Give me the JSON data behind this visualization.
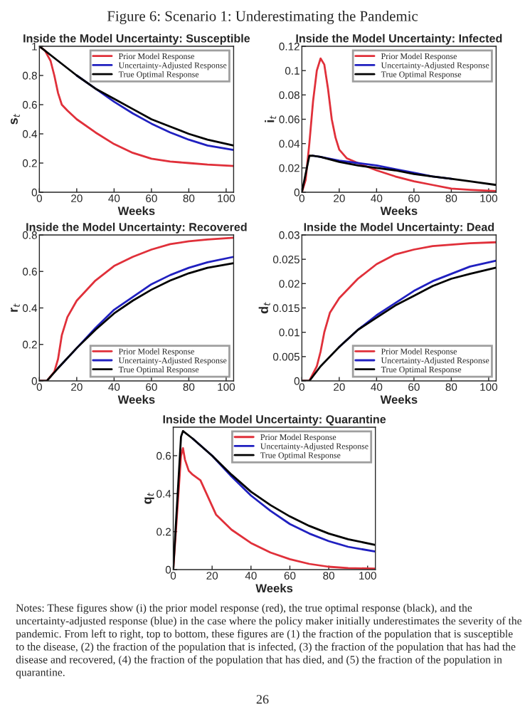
{
  "chart_data": [
    {
      "type": "line",
      "title": "Inside the Model Uncertainty: Susceptible",
      "xlabel": "Weeks",
      "ylabel": "s$_{t}$",
      "xlim": [
        0,
        104
      ],
      "xticks": [
        0,
        20,
        40,
        60,
        80,
        100
      ],
      "ylim": [
        0,
        1
      ],
      "yticks": [
        0,
        0.2,
        0.4,
        0.6,
        0.8,
        1
      ],
      "legend": "top right",
      "grid": false,
      "annotations": [
        "Figure 6: Scenario 1: Underestimating the Pandemic"
      ],
      "series": [
        {
          "name": "Prior Model Response",
          "color": "#e0303a",
          "x": [
            0,
            3,
            6,
            8,
            10,
            12,
            15,
            20,
            30,
            40,
            50,
            60,
            70,
            80,
            90,
            104
          ],
          "values": [
            1,
            0.97,
            0.9,
            0.8,
            0.68,
            0.6,
            0.56,
            0.5,
            0.41,
            0.33,
            0.27,
            0.23,
            0.21,
            0.2,
            0.19,
            0.18
          ]
        },
        {
          "name": "Uncertainty-Adjusted Response",
          "color": "#2020c0",
          "x": [
            20,
            30,
            40,
            50,
            60,
            70,
            80,
            90,
            104
          ],
          "values": [
            0.8,
            0.71,
            0.62,
            0.54,
            0.47,
            0.41,
            0.36,
            0.32,
            0.29
          ]
        },
        {
          "name": "True Optimal Response",
          "color": "#000000",
          "x": [
            0,
            10,
            20,
            30,
            40,
            50,
            60,
            70,
            80,
            90,
            104
          ],
          "values": [
            1,
            0.9,
            0.8,
            0.71,
            0.64,
            0.57,
            0.5,
            0.45,
            0.4,
            0.36,
            0.32
          ]
        }
      ]
    },
    {
      "type": "line",
      "title": "Inside the Model Uncertainty: Infected",
      "xlabel": "Weeks",
      "ylabel": "i$_{t}$",
      "xlim": [
        0,
        104
      ],
      "xticks": [
        0,
        20,
        40,
        60,
        80,
        100
      ],
      "ylim": [
        0,
        0.12
      ],
      "yticks": [
        0,
        0.02,
        0.04,
        0.06,
        0.08,
        0.1,
        0.12
      ],
      "legend": "top right",
      "grid": false,
      "series": [
        {
          "name": "Prior Model Response",
          "color": "#e0303a",
          "x": [
            0,
            2,
            4,
            6,
            8,
            10,
            12,
            14,
            16,
            18,
            20,
            24,
            30,
            40,
            50,
            60,
            70,
            80,
            90,
            104
          ],
          "values": [
            0,
            0.01,
            0.04,
            0.075,
            0.1,
            0.11,
            0.105,
            0.085,
            0.06,
            0.045,
            0.035,
            0.028,
            0.024,
            0.018,
            0.013,
            0.009,
            0.006,
            0.003,
            0.002,
            0.001
          ]
        },
        {
          "name": "Uncertainty-Adjusted Response",
          "color": "#2020c0",
          "x": [
            6,
            10,
            20,
            30,
            40,
            50,
            60,
            70,
            80
          ],
          "values": [
            0.03,
            0.029,
            0.026,
            0.024,
            0.022,
            0.019,
            0.016,
            0.013,
            0.011
          ]
        },
        {
          "name": "True Optimal Response",
          "color": "#000000",
          "x": [
            0,
            2,
            4,
            6,
            10,
            20,
            30,
            40,
            50,
            60,
            70,
            80,
            90,
            104
          ],
          "values": [
            0,
            0.015,
            0.03,
            0.03,
            0.029,
            0.025,
            0.022,
            0.02,
            0.018,
            0.015,
            0.013,
            0.011,
            0.009,
            0.006
          ]
        }
      ]
    },
    {
      "type": "line",
      "title": "Inside the Model Uncertainty: Recovered",
      "xlabel": "Weeks",
      "ylabel": "r$_{t}$",
      "xlim": [
        0,
        104
      ],
      "xticks": [
        0,
        20,
        40,
        60,
        80,
        100
      ],
      "ylim": [
        0,
        0.8
      ],
      "yticks": [
        0,
        0.2,
        0.4,
        0.6,
        0.8
      ],
      "legend": "bottom right",
      "grid": false,
      "series": [
        {
          "name": "Prior Model Response",
          "color": "#e0303a",
          "x": [
            0,
            4,
            8,
            10,
            12,
            15,
            20,
            30,
            40,
            50,
            60,
            70,
            80,
            90,
            104
          ],
          "values": [
            0,
            0,
            0.05,
            0.12,
            0.25,
            0.35,
            0.44,
            0.55,
            0.63,
            0.68,
            0.72,
            0.75,
            0.765,
            0.775,
            0.785
          ]
        },
        {
          "name": "Uncertainty-Adjusted Response",
          "color": "#2020c0",
          "x": [
            10,
            20,
            30,
            40,
            50,
            60,
            70,
            80,
            90,
            104
          ],
          "values": [
            0.07,
            0.18,
            0.29,
            0.39,
            0.46,
            0.53,
            0.58,
            0.62,
            0.65,
            0.68
          ]
        },
        {
          "name": "True Optimal Response",
          "color": "#000000",
          "x": [
            0,
            4,
            10,
            20,
            30,
            40,
            50,
            60,
            70,
            80,
            90,
            104
          ],
          "values": [
            0,
            0,
            0.07,
            0.18,
            0.28,
            0.37,
            0.44,
            0.5,
            0.55,
            0.59,
            0.62,
            0.645
          ]
        }
      ]
    },
    {
      "type": "line",
      "title": "Inside the Model Uncertainty: Dead",
      "xlabel": "Weeks",
      "ylabel": "d$_{t}$",
      "xlim": [
        0,
        104
      ],
      "xticks": [
        0,
        20,
        40,
        60,
        80,
        100
      ],
      "ylim": [
        0,
        0.03
      ],
      "yticks": [
        0,
        0.005,
        0.01,
        0.015,
        0.02,
        0.025,
        0.03
      ],
      "legend": "bottom right",
      "grid": false,
      "series": [
        {
          "name": "Prior Model Response",
          "color": "#e0303a",
          "x": [
            0,
            4,
            8,
            10,
            12,
            15,
            20,
            30,
            40,
            50,
            60,
            70,
            80,
            90,
            104
          ],
          "values": [
            0,
            0,
            0.003,
            0.006,
            0.01,
            0.014,
            0.017,
            0.021,
            0.024,
            0.026,
            0.027,
            0.0277,
            0.028,
            0.0283,
            0.0285
          ]
        },
        {
          "name": "Uncertainty-Adjusted Response",
          "color": "#2020c0",
          "x": [
            20,
            30,
            40,
            50,
            60,
            70,
            80,
            90,
            104
          ],
          "values": [
            0.007,
            0.0105,
            0.0135,
            0.016,
            0.0185,
            0.0205,
            0.022,
            0.0235,
            0.0247
          ]
        },
        {
          "name": "True Optimal Response",
          "color": "#000000",
          "x": [
            0,
            4,
            10,
            20,
            30,
            40,
            50,
            60,
            70,
            80,
            90,
            104
          ],
          "values": [
            0,
            0,
            0.003,
            0.007,
            0.0105,
            0.013,
            0.0155,
            0.0175,
            0.0195,
            0.021,
            0.022,
            0.0233
          ]
        }
      ]
    },
    {
      "type": "line",
      "title": "Inside the Model Uncertainty: Quarantine",
      "xlabel": "Weeks",
      "ylabel": "q$_{t}$",
      "xlim": [
        0,
        104
      ],
      "xticks": [
        0,
        20,
        40,
        60,
        80,
        100
      ],
      "ylim": [
        0,
        0.75
      ],
      "yticks": [
        0,
        0.2,
        0.4,
        0.6
      ],
      "legend": "top right",
      "grid": false,
      "annotations": [
        "Notes: These figures show (i) the prior model response (red), the true optimal response (black), and the uncertainty-adjusted response (blue) in the case where the policy maker initially underestimates the severity of the pandemic. From left to right, top to bottom, these figures are (1) the fraction of the population that is susceptible to the disease, (2) the fraction of the population that is infected, (3) the fraction of the population that has had the disease and recovered, (4) the fraction of the population that has died, and (5) the fraction of the population in quarantine.",
        "26"
      ],
      "series": [
        {
          "name": "Prior Model Response",
          "color": "#e0303a",
          "x": [
            0,
            2,
            4,
            5,
            6,
            8,
            10,
            14,
            18,
            22,
            30,
            40,
            50,
            60,
            70,
            80,
            90,
            104
          ],
          "values": [
            0,
            0.3,
            0.6,
            0.64,
            0.58,
            0.52,
            0.5,
            0.47,
            0.38,
            0.29,
            0.21,
            0.14,
            0.09,
            0.055,
            0.03,
            0.015,
            0.008,
            0.005
          ]
        },
        {
          "name": "Uncertainty-Adjusted Response",
          "color": "#2020c0",
          "x": [
            10,
            20,
            30,
            40,
            50,
            60,
            70,
            80,
            90,
            104
          ],
          "values": [
            0.69,
            0.6,
            0.49,
            0.39,
            0.31,
            0.24,
            0.19,
            0.15,
            0.12,
            0.095
          ]
        },
        {
          "name": "True Optimal Response",
          "color": "#000000",
          "x": [
            0,
            2,
            4,
            5,
            10,
            20,
            30,
            40,
            50,
            60,
            70,
            80,
            90,
            104
          ],
          "values": [
            0,
            0.35,
            0.7,
            0.73,
            0.69,
            0.6,
            0.5,
            0.41,
            0.34,
            0.28,
            0.23,
            0.19,
            0.16,
            0.13
          ]
        }
      ]
    }
  ]
}
